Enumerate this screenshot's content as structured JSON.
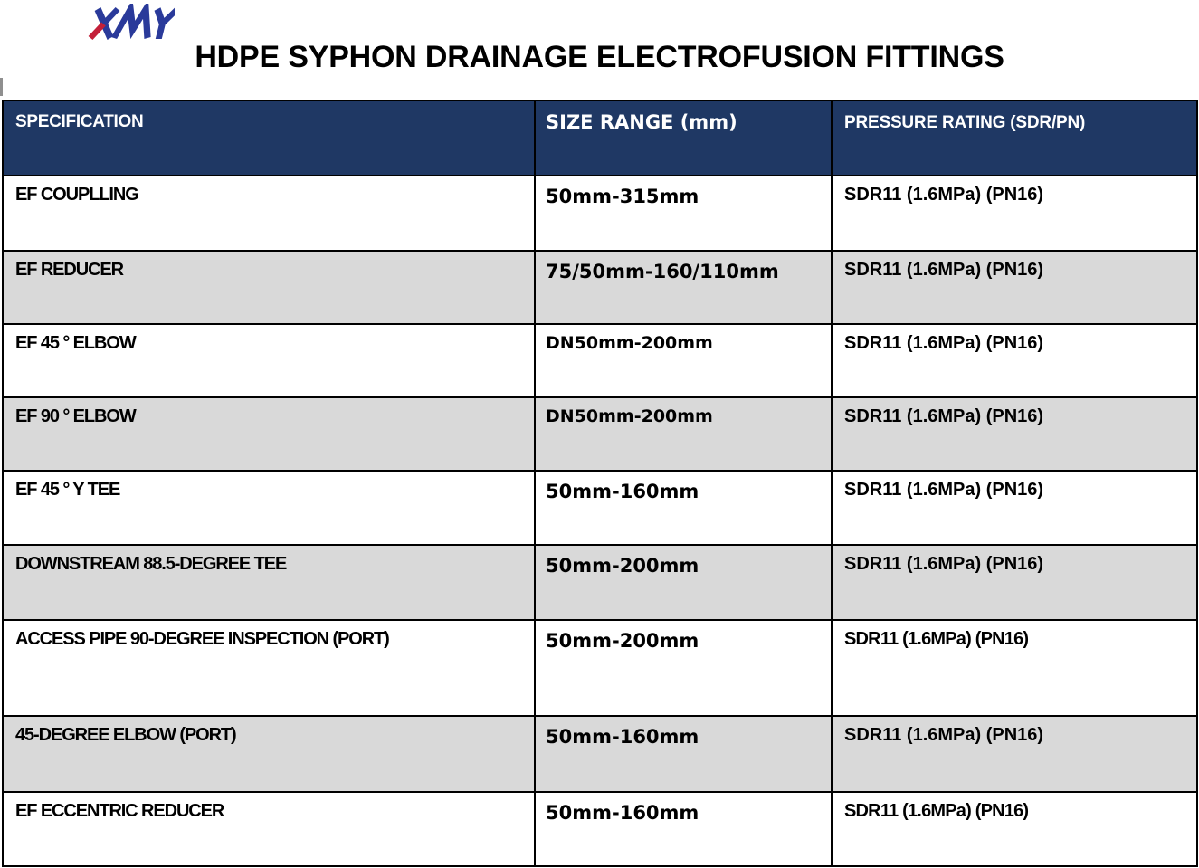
{
  "page": {
    "title": "HDPE SYPHON DRAINAGE ELECTROFUSION FITTINGS",
    "logo_text": "XMY"
  },
  "colors": {
    "header_bg": "#1F3864",
    "alt_row_bg": "#D9D9D9",
    "border": "#000000",
    "logo_blue": "#2A3A9A",
    "logo_red": "#C32039"
  },
  "table": {
    "columns": [
      {
        "id": "specification",
        "label": "SPECIFICATION"
      },
      {
        "id": "size_range",
        "label": "SIZE RANGE (mm)"
      },
      {
        "id": "pressure_rating",
        "label": "PRESSURE RATING (SDR/PN)"
      }
    ],
    "rows": [
      {
        "specification": "EF COUPLLING",
        "size_range": "50mm-315mm",
        "pressure_rating": "SDR11 (1.6MPa) (PN16)"
      },
      {
        "specification": "EF REDUCER",
        "size_range": "75/50mm-160/110mm",
        "pressure_rating": "SDR11 (1.6MPa) (PN16)"
      },
      {
        "specification": "EF 45 ° ELBOW",
        "size_range": "DN50mm-200mm",
        "pressure_rating": "SDR11 (1.6MPa) (PN16)"
      },
      {
        "specification": "EF 90 ° ELBOW",
        "size_range": "DN50mm-200mm",
        "pressure_rating": "SDR11 (1.6MPa) (PN16)"
      },
      {
        "specification": "EF 45 ° Y TEE",
        "size_range": "50mm-160mm",
        "pressure_rating": "SDR11 (1.6MPa) (PN16)"
      },
      {
        "specification": "DOWNSTREAM 88.5-DEGREE TEE",
        "size_range": "50mm-200mm",
        "pressure_rating": "SDR11 (1.6MPa) (PN16)"
      },
      {
        "specification": "ACCESS PIPE 90-DEGREE INSPECTION (PORT)",
        "size_range": "50mm-200mm",
        "pressure_rating": "SDR11 (1.6MPa) (PN16)"
      },
      {
        "specification": "45-DEGREE ELBOW (PORT)",
        "size_range": "50mm-160mm",
        "pressure_rating": "SDR11 (1.6MPa) (PN16)"
      },
      {
        "specification": "EF ECCENTRIC REDUCER",
        "size_range": "50mm-160mm",
        "pressure_rating": "SDR11 (1.6MPa) (PN16)"
      }
    ]
  }
}
